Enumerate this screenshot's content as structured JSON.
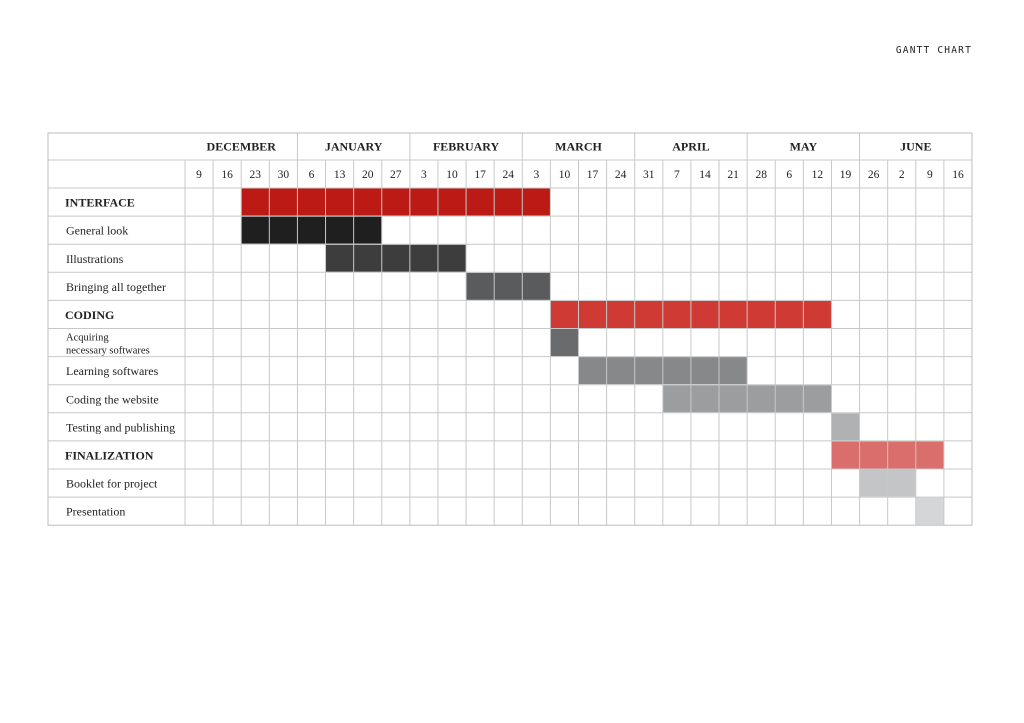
{
  "title": "GANTT CHART",
  "chart_data": {
    "type": "gantt",
    "months": [
      {
        "name": "DECEMBER",
        "weeks": [
          "9",
          "16",
          "23",
          "30"
        ]
      },
      {
        "name": "JANUARY",
        "weeks": [
          "6",
          "13",
          "20",
          "27"
        ]
      },
      {
        "name": "FEBRUARY",
        "weeks": [
          "3",
          "10",
          "17",
          "24"
        ]
      },
      {
        "name": "MARCH",
        "weeks": [
          "3",
          "10",
          "17",
          "24"
        ]
      },
      {
        "name": "APRIL",
        "weeks": [
          "31",
          "7",
          "14",
          "21"
        ]
      },
      {
        "name": "MAY",
        "weeks": [
          "28",
          "6",
          "12",
          "19"
        ]
      },
      {
        "name": "JUNE",
        "weeks": [
          "26",
          "2",
          "9",
          "16"
        ]
      }
    ],
    "tasks": [
      {
        "name": "INTERFACE",
        "section": true,
        "start": 2,
        "end": 13,
        "color": "#bb1b14"
      },
      {
        "name": "General look",
        "start": 2,
        "end": 7,
        "color": "#1f1f1f"
      },
      {
        "name": "Illustrations",
        "start": 5,
        "end": 10,
        "color": "#3d3d3d"
      },
      {
        "name": "Bringing all together",
        "start": 10,
        "end": 13,
        "color": "#5a5b5d"
      },
      {
        "name": "CODING",
        "section": true,
        "start": 13,
        "end": 23,
        "color": "#cf3b34"
      },
      {
        "name": "Acquiring",
        "name2": "necessary softwares",
        "start": 13,
        "end": 14,
        "color": "#6a6b6d"
      },
      {
        "name": "Learning softwares",
        "start": 14,
        "end": 20,
        "color": "#87888a"
      },
      {
        "name": "Coding the website",
        "start": 17,
        "end": 23,
        "color": "#9c9d9f"
      },
      {
        "name": "Testing and publishing",
        "start": 23,
        "end": 24,
        "color": "#b0b1b3"
      },
      {
        "name": "FINALIZATION",
        "section": true,
        "start": 23,
        "end": 27,
        "color": "#d96e6c"
      },
      {
        "name": "Booklet for project",
        "start": 24,
        "end": 26,
        "color": "#c4c5c7"
      },
      {
        "name": "Presentation",
        "start": 26,
        "end": 27,
        "color": "#d5d6d7"
      }
    ]
  }
}
